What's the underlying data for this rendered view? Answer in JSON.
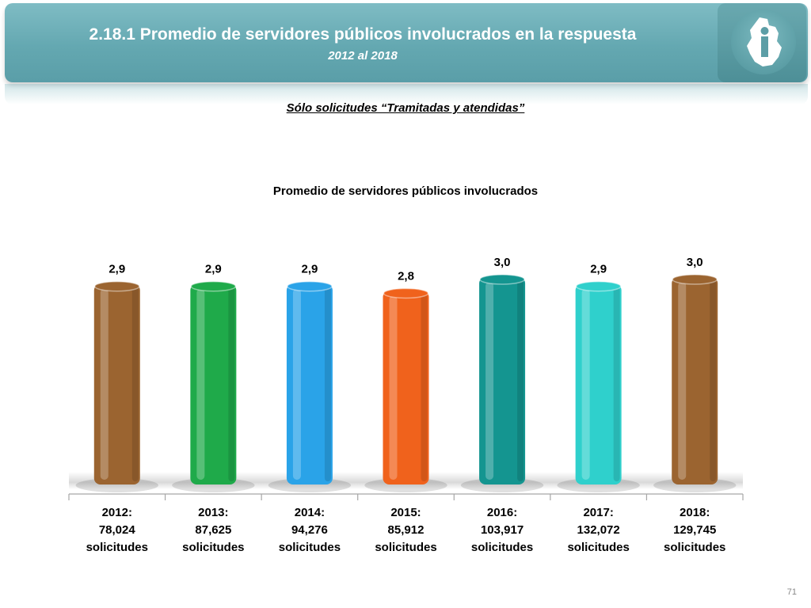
{
  "header": {
    "title": "2.18.1 Promedio de servidores públicos involucrados en la respuesta",
    "subtitle": "2012 al 2018",
    "logo_icon": "cdmx-map-logo-icon"
  },
  "note": "Sólo solicitudes “Tramitadas y atendidas”",
  "page_number": "71",
  "chart_data": {
    "type": "bar",
    "title": "Promedio de servidores públicos involucrados",
    "categories": [
      {
        "year": "2012:",
        "count": "78,024",
        "unit": "solicitudes"
      },
      {
        "year": "2013:",
        "count": "87,625",
        "unit": "solicitudes"
      },
      {
        "year": "2014:",
        "count": "94,276",
        "unit": "solicitudes"
      },
      {
        "year": "2015:",
        "count": "85,912",
        "unit": "solicitudes"
      },
      {
        "year": "2016:",
        "count": "103,917",
        "unit": "solicitudes"
      },
      {
        "year": "2017:",
        "count": "132,072",
        "unit": "solicitudes"
      },
      {
        "year": "2018:",
        "count": "129,745",
        "unit": "solicitudes"
      }
    ],
    "values": [
      2.9,
      2.9,
      2.9,
      2.8,
      3.0,
      2.9,
      3.0
    ],
    "value_labels": [
      "2,9",
      "2,9",
      "2,9",
      "2,8",
      "3,0",
      "2,9",
      "3,0"
    ],
    "colors": [
      "#9b6430",
      "#1faa4a",
      "#2aa3e8",
      "#f0621c",
      "#149590",
      "#2fd0cc",
      "#9b6430"
    ],
    "ylim": [
      0,
      3.0
    ],
    "grid": false,
    "legend": "none"
  }
}
